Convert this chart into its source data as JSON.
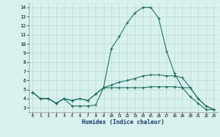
{
  "xlabel": "Humidex (Indice chaleur)",
  "x": [
    0,
    1,
    2,
    3,
    4,
    5,
    6,
    7,
    8,
    9,
    10,
    11,
    12,
    13,
    14,
    15,
    16,
    17,
    18,
    19,
    20,
    21,
    22,
    23
  ],
  "line1": [
    4.7,
    4.0,
    4.0,
    3.5,
    4.0,
    3.2,
    3.2,
    3.2,
    3.3,
    5.2,
    9.5,
    10.8,
    12.3,
    13.4,
    14.0,
    14.0,
    12.8,
    9.2,
    6.8,
    5.2,
    4.2,
    3.5,
    2.8,
    2.8
  ],
  "line2": [
    4.7,
    4.0,
    4.0,
    3.5,
    4.0,
    3.8,
    4.0,
    3.8,
    4.5,
    5.2,
    5.5,
    5.8,
    6.0,
    6.2,
    6.5,
    6.6,
    6.6,
    6.5,
    6.5,
    6.3,
    5.2,
    4.0,
    3.2,
    2.8
  ],
  "line3": [
    4.7,
    4.0,
    4.0,
    3.5,
    4.0,
    3.8,
    4.0,
    3.8,
    4.5,
    5.2,
    5.2,
    5.2,
    5.2,
    5.2,
    5.2,
    5.3,
    5.3,
    5.3,
    5.3,
    5.2,
    5.2,
    4.0,
    3.2,
    2.8
  ],
  "ylim": [
    2.5,
    14.5
  ],
  "xlim": [
    -0.5,
    23.5
  ],
  "yticks": [
    3,
    4,
    5,
    6,
    7,
    8,
    9,
    10,
    11,
    12,
    13,
    14
  ],
  "xticks": [
    0,
    1,
    2,
    3,
    4,
    5,
    6,
    7,
    8,
    9,
    10,
    11,
    12,
    13,
    14,
    15,
    16,
    17,
    18,
    19,
    20,
    21,
    22,
    23
  ],
  "line_color": "#1a6b5a",
  "bg_color": "#d8f0ee",
  "grid_color": "#b8d8d4",
  "marker": "+"
}
